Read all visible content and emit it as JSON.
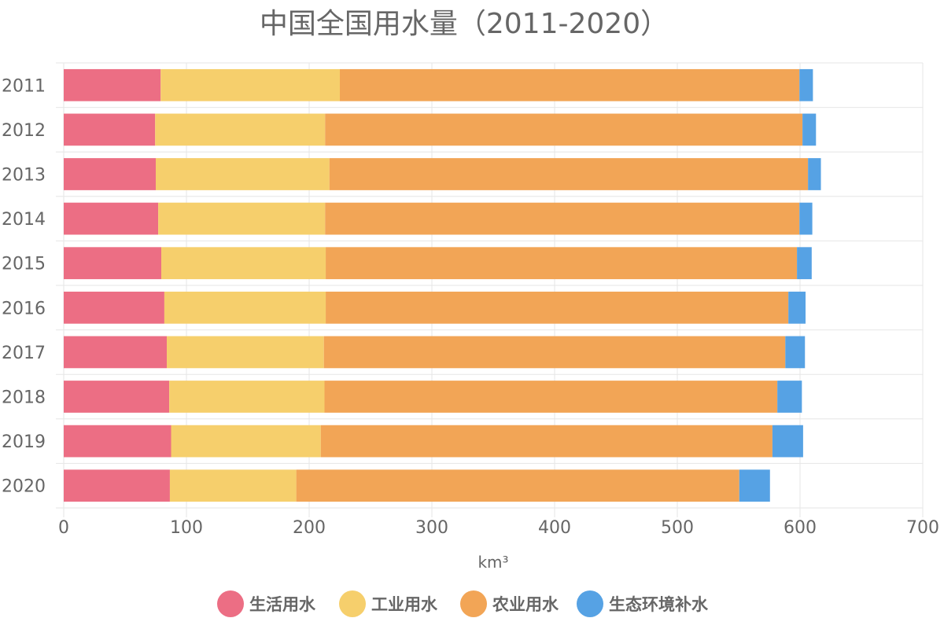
{
  "chart_data": {
    "type": "bar",
    "orientation": "horizontal",
    "stacked": true,
    "title": "中国全国用水量（2011-2020）",
    "xlabel": "km³",
    "ylabel": "",
    "xlim": [
      0,
      700
    ],
    "x_ticks": [
      0,
      100,
      200,
      300,
      400,
      500,
      600,
      700
    ],
    "categories": [
      "2011",
      "2012",
      "2013",
      "2014",
      "2015",
      "2016",
      "2017",
      "2018",
      "2019",
      "2020"
    ],
    "series": [
      {
        "name": "生活用水",
        "color": "#ec6e84",
        "values": [
          79,
          74.5,
          75,
          77,
          79.5,
          82,
          84,
          86,
          87.5,
          86.5
        ]
      },
      {
        "name": "工业用水",
        "color": "#f6cf6c",
        "values": [
          146,
          138.5,
          141.5,
          136,
          134,
          131.5,
          128,
          126.5,
          122,
          103
        ]
      },
      {
        "name": "农业用水",
        "color": "#f2a556",
        "values": [
          374.5,
          389,
          390,
          386.5,
          384,
          377,
          376,
          369,
          368,
          361
        ]
      },
      {
        "name": "生态环境补水",
        "color": "#56a2e4",
        "values": [
          11,
          11,
          10.5,
          10.5,
          12,
          14,
          16,
          20,
          25,
          25
        ]
      }
    ],
    "grid": true,
    "legend_position": "bottom"
  }
}
